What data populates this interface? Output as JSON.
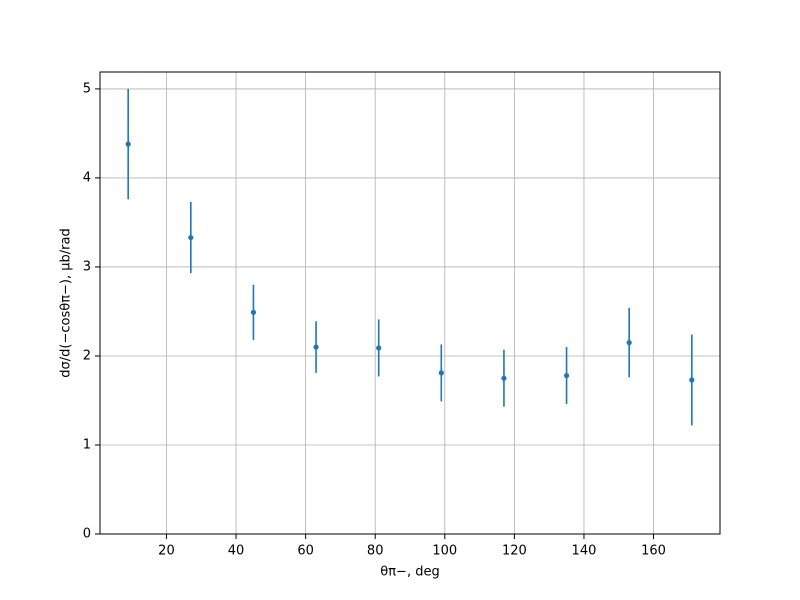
{
  "chart_data": {
    "type": "errorbar",
    "x_label": "θπ−, deg",
    "y_label": "dσ/d(−cosθπ−), μb/rad",
    "x": [
      9,
      27,
      45,
      63,
      81,
      99,
      117,
      135,
      153,
      171
    ],
    "values": [
      4.38,
      3.33,
      2.49,
      2.1,
      2.09,
      1.81,
      1.75,
      1.78,
      2.15,
      1.73
    ],
    "errors": [
      0.62,
      0.4,
      0.31,
      0.29,
      0.32,
      0.32,
      0.32,
      0.32,
      0.39,
      0.51
    ],
    "color": "#1f77b4",
    "xlim": [
      0.9,
      179.1
    ],
    "xticks": [
      20,
      40,
      60,
      80,
      100,
      120,
      140,
      160
    ],
    "ylim": [
      0,
      5.19
    ],
    "yticks": [
      0,
      1,
      2,
      3,
      4,
      5
    ],
    "grid": true
  }
}
